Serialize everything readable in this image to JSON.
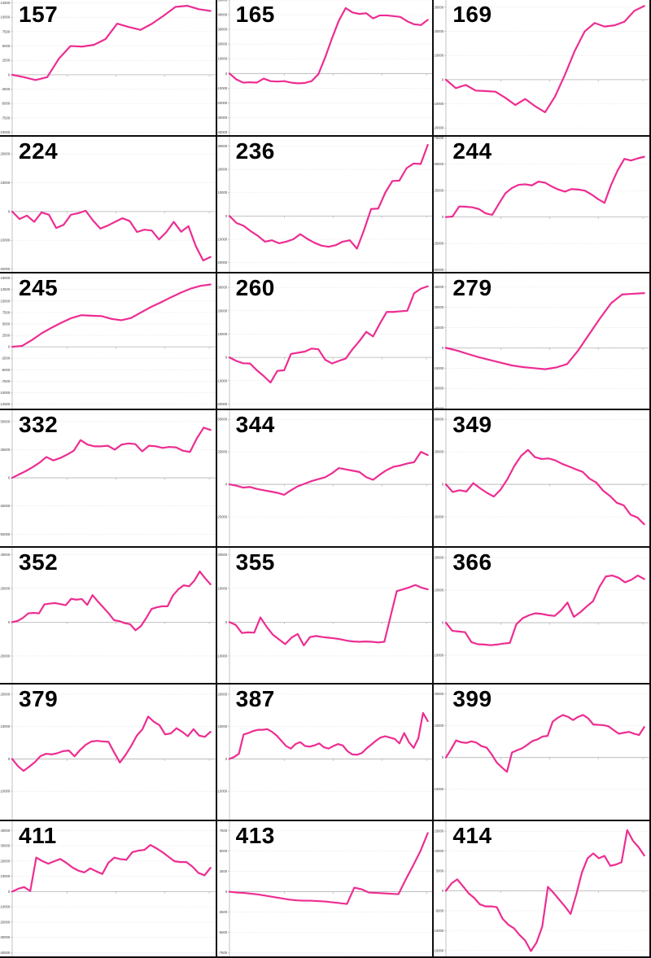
{
  "style": {
    "line_color": "#ed2d92",
    "grid_color": "#d9d9d9",
    "axis_color": "#b3b3b3",
    "tick_text_color": "#3d3d3d",
    "divider_color": "#0d0d0d",
    "label_color": "#000000"
  },
  "chart_data": [
    {
      "type": "line",
      "label": "157",
      "ylim": [
        -10500,
        13000
      ],
      "tick_step": 2500,
      "legend": "none",
      "grid": "dotted-horizontal",
      "values": [
        0,
        -400,
        -900,
        -400,
        2800,
        5000,
        4900,
        5200,
        6200,
        8900,
        8300,
        7800,
        8900,
        10300,
        11800,
        12000,
        11400,
        11100
      ]
    },
    {
      "type": "line",
      "label": "165",
      "ylim": [
        -42000,
        50000
      ],
      "tick_step": 10000,
      "values": [
        0,
        -4000,
        -6200,
        -6000,
        -6200,
        -3500,
        -5200,
        -5500,
        -5200,
        -6200,
        -6700,
        -6500,
        -5200,
        -500,
        11000,
        24000,
        36000,
        44500,
        41500,
        40500,
        41000,
        37500,
        39500,
        39500,
        39000,
        38500,
        35500,
        33500,
        33000,
        36500
      ]
    },
    {
      "type": "line",
      "label": "169",
      "ylim": [
        -23000,
        33000
      ],
      "tick_step": 10000,
      "values": [
        0,
        -3500,
        -2200,
        -4500,
        -4700,
        -5000,
        -7500,
        -10500,
        -8000,
        -11000,
        -13500,
        -7000,
        2000,
        12000,
        20000,
        23500,
        22000,
        22500,
        24000,
        28500,
        30500
      ]
    },
    {
      "type": "line",
      "label": "224",
      "ylim": [
        -21000,
        26000
      ],
      "tick_step": 10000,
      "values": [
        0,
        -2600,
        -1400,
        -3600,
        -300,
        -1100,
        -5700,
        -4600,
        -1100,
        -600,
        300,
        -3100,
        -5900,
        -4900,
        -3600,
        -2300,
        -3300,
        -7100,
        -6300,
        -6600,
        -9700,
        -7100,
        -3600,
        -7000,
        -5100,
        -12000,
        -17000,
        -15800
      ]
    },
    {
      "type": "line",
      "label": "236",
      "ylim": [
        -24000,
        34000
      ],
      "tick_step": 10000,
      "values": [
        0,
        -3000,
        -4200,
        -6500,
        -8500,
        -11000,
        -10400,
        -11700,
        -11000,
        -10000,
        -7800,
        -9800,
        -11500,
        -12700,
        -13200,
        -12500,
        -11000,
        -10400,
        -14000,
        -6000,
        3000,
        3200,
        10000,
        15000,
        15200,
        20500,
        22500,
        22300,
        30500
      ]
    },
    {
      "type": "line",
      "label": "244",
      "ylim": [
        -52000,
        76000
      ],
      "tick_step": 25000,
      "values": [
        0,
        500,
        10000,
        9800,
        9200,
        7500,
        3500,
        2000,
        12500,
        22500,
        27500,
        30500,
        31000,
        30000,
        33500,
        32500,
        29000,
        26000,
        24000,
        26500,
        26000,
        25000,
        21500,
        17000,
        13500,
        30500,
        44500,
        55000,
        53500,
        55500,
        57000
      ]
    },
    {
      "type": "line",
      "label": "245",
      "ylim": [
        -13500,
        16000
      ],
      "tick_step": 2500,
      "values": [
        0,
        200,
        1500,
        3000,
        4200,
        5300,
        6300,
        6900,
        6800,
        6700,
        6100,
        5800,
        6300,
        7500,
        8700,
        9700,
        10800,
        11800,
        12700,
        13300,
        13600
      ]
    },
    {
      "type": "line",
      "label": "260",
      "ylim": [
        -22000,
        36000
      ],
      "tick_step": 10000,
      "values": [
        0,
        -1500,
        -2500,
        -2600,
        -5500,
        -8000,
        -10800,
        -5800,
        -5500,
        1500,
        2000,
        2500,
        3800,
        3500,
        -1000,
        -2600,
        -1500,
        -500,
        3500,
        7000,
        11000,
        9000,
        14500,
        19500,
        19500,
        19800,
        20000,
        27500,
        29500,
        30500
      ]
    },
    {
      "type": "line",
      "label": "279",
      "ylim": [
        -45000,
        55000
      ],
      "tick_step": 15000,
      "values": [
        0,
        -2000,
        -4500,
        -7000,
        -9000,
        -11000,
        -13000,
        -14200,
        -15000,
        -15800,
        -14500,
        -12000,
        -2000,
        10000,
        22000,
        33000,
        39500,
        40000,
        40500
      ]
    },
    {
      "type": "line",
      "label": "332",
      "ylim": [
        -60000,
        60000
      ],
      "tick_step": 25000,
      "values": [
        0,
        3000,
        6000,
        9500,
        13500,
        18500,
        15500,
        17500,
        20500,
        24000,
        33500,
        29500,
        28000,
        28000,
        28500,
        25000,
        29500,
        30500,
        30000,
        23500,
        28500,
        28000,
        26500,
        27500,
        27000,
        24000,
        23000,
        35000,
        44500,
        42500
      ]
    },
    {
      "type": "line",
      "label": "344",
      "ylim": [
        -47000,
        57000
      ],
      "tick_step": 25000,
      "values": [
        0,
        -1000,
        -2500,
        -2000,
        -3500,
        -4500,
        -5500,
        -6500,
        -8000,
        -4500,
        -1500,
        500,
        2500,
        4000,
        5500,
        8500,
        12500,
        11500,
        10500,
        9500,
        5500,
        3500,
        7500,
        11000,
        13500,
        14500,
        16000,
        17000,
        25000,
        22500
      ]
    },
    {
      "type": "line",
      "label": "349",
      "ylim": [
        -47000,
        57000
      ],
      "tick_step": 25000,
      "values": [
        0,
        -5900,
        -4500,
        -5500,
        900,
        -3000,
        -6500,
        -9400,
        -4000,
        4000,
        14000,
        22000,
        26500,
        21000,
        19500,
        19900,
        18500,
        15700,
        13700,
        11500,
        9600,
        4400,
        1300,
        -4900,
        -9000,
        -14200,
        -16200,
        -23400,
        -25500,
        -30700
      ]
    },
    {
      "type": "line",
      "label": "352",
      "ylim": [
        -36000,
        44000
      ],
      "tick_step": 20000,
      "values": [
        0,
        700,
        2500,
        5200,
        5500,
        5200,
        10500,
        11000,
        11300,
        10700,
        10000,
        13800,
        13300,
        13700,
        10200,
        16000,
        12200,
        8700,
        5200,
        1200,
        600,
        -600,
        -1200,
        -4800,
        -2400,
        2400,
        7800,
        8800,
        9400,
        9400,
        15800,
        19400,
        21800,
        21200,
        24600,
        30000,
        26000,
        22400
      ]
    },
    {
      "type": "line",
      "label": "355",
      "ylim": [
        -18000,
        22000
      ],
      "tick_step": 10000,
      "values": [
        0,
        -800,
        -3200,
        -3000,
        -3100,
        1400,
        -1400,
        -3700,
        -5100,
        -6500,
        -4600,
        -3500,
        -6900,
        -4400,
        -4100,
        -4400,
        -4600,
        -4800,
        -5100,
        -5500,
        -5700,
        -5800,
        -5700,
        -5800,
        -6000,
        -5800,
        1800,
        9200,
        9700,
        10300,
        11000,
        10200,
        9700
      ]
    },
    {
      "type": "line",
      "label": "366",
      "ylim": [
        -18500,
        23000
      ],
      "tick_step": 10000,
      "values": [
        0,
        -2500,
        -2700,
        -2900,
        -6000,
        -6600,
        -6700,
        -6900,
        -6700,
        -6400,
        -6200,
        -500,
        1400,
        2300,
        2900,
        2700,
        2300,
        2100,
        3800,
        6200,
        1800,
        3200,
        5000,
        6600,
        11000,
        14200,
        14500,
        13800,
        12400,
        13200,
        14500,
        13400
      ]
    },
    {
      "type": "line",
      "label": "379",
      "ylim": [
        -18800,
        23000
      ],
      "tick_step": 10000,
      "values": [
        0,
        -2200,
        -3700,
        -2400,
        -1000,
        900,
        1600,
        1400,
        1800,
        2400,
        2600,
        800,
        2800,
        4400,
        5400,
        5600,
        5400,
        5300,
        2000,
        -1100,
        1200,
        4000,
        7200,
        9200,
        13100,
        11500,
        10400,
        7600,
        7900,
        9500,
        8400,
        7000,
        9200,
        7200,
        6800,
        8400
      ]
    },
    {
      "type": "line",
      "label": "387",
      "ylim": [
        -18800,
        23000
      ],
      "tick_step": 10000,
      "values": [
        0,
        600,
        1600,
        7600,
        8000,
        8600,
        9000,
        9000,
        9200,
        8400,
        7200,
        5600,
        4000,
        3200,
        4600,
        5200,
        4000,
        3800,
        4200,
        4800,
        3600,
        3200,
        4000,
        4600,
        4200,
        2400,
        1400,
        1300,
        1800,
        3200,
        4400,
        5600,
        6600,
        7000,
        6600,
        6200,
        4800,
        8000,
        5200,
        3400,
        6400,
        14200,
        11700
      ]
    },
    {
      "type": "line",
      "label": "399",
      "ylim": [
        -19600,
        23000
      ],
      "tick_step": 10000,
      "values": [
        0,
        2600,
        5400,
        4800,
        4600,
        5100,
        4700,
        3600,
        3100,
        1000,
        -1600,
        -3100,
        -4500,
        1600,
        2300,
        2900,
        4000,
        5200,
        5700,
        6600,
        6800,
        11300,
        12500,
        13400,
        12800,
        11800,
        12800,
        13400,
        12300,
        10400,
        10300,
        10200,
        9800,
        8600,
        7500,
        7800,
        8100,
        7500,
        7100,
        9600
      ]
    },
    {
      "type": "line",
      "label": "411",
      "ylim": [
        -42500,
        46000
      ],
      "tick_step": 10000,
      "values": [
        0,
        1800,
        2900,
        300,
        22200,
        20000,
        18200,
        19800,
        21300,
        18800,
        15800,
        13700,
        12500,
        15200,
        13200,
        11500,
        18800,
        22200,
        21200,
        20800,
        25800,
        26800,
        27300,
        30500,
        28300,
        25800,
        22800,
        19800,
        19300,
        19300,
        16300,
        12200,
        10600,
        15500
      ]
    },
    {
      "type": "line",
      "label": "413",
      "ylim": [
        -7950,
        8650
      ],
      "tick_step": 2500,
      "values": [
        0,
        -100,
        -150,
        -250,
        -350,
        -500,
        -650,
        -800,
        -950,
        -1050,
        -1100,
        -1100,
        -1150,
        -1200,
        -1300,
        -1400,
        -1500,
        500,
        300,
        -100,
        -150,
        -200,
        -250,
        -300,
        1500,
        3200,
        5000,
        7200
      ]
    },
    {
      "type": "line",
      "label": "414",
      "ylim": [
        -16500,
        17500
      ],
      "tick_step": 5000,
      "values": [
        0,
        1900,
        2900,
        1200,
        -600,
        -1800,
        -3400,
        -3900,
        -3900,
        -4100,
        -7000,
        -8500,
        -9400,
        -11100,
        -12500,
        -15150,
        -13000,
        -9000,
        1000,
        -500,
        -2200,
        -3900,
        -5800,
        -1000,
        4600,
        8200,
        9400,
        8200,
        8800,
        6300,
        6600,
        7200,
        15260,
        12600,
        11000,
        8900
      ]
    }
  ]
}
